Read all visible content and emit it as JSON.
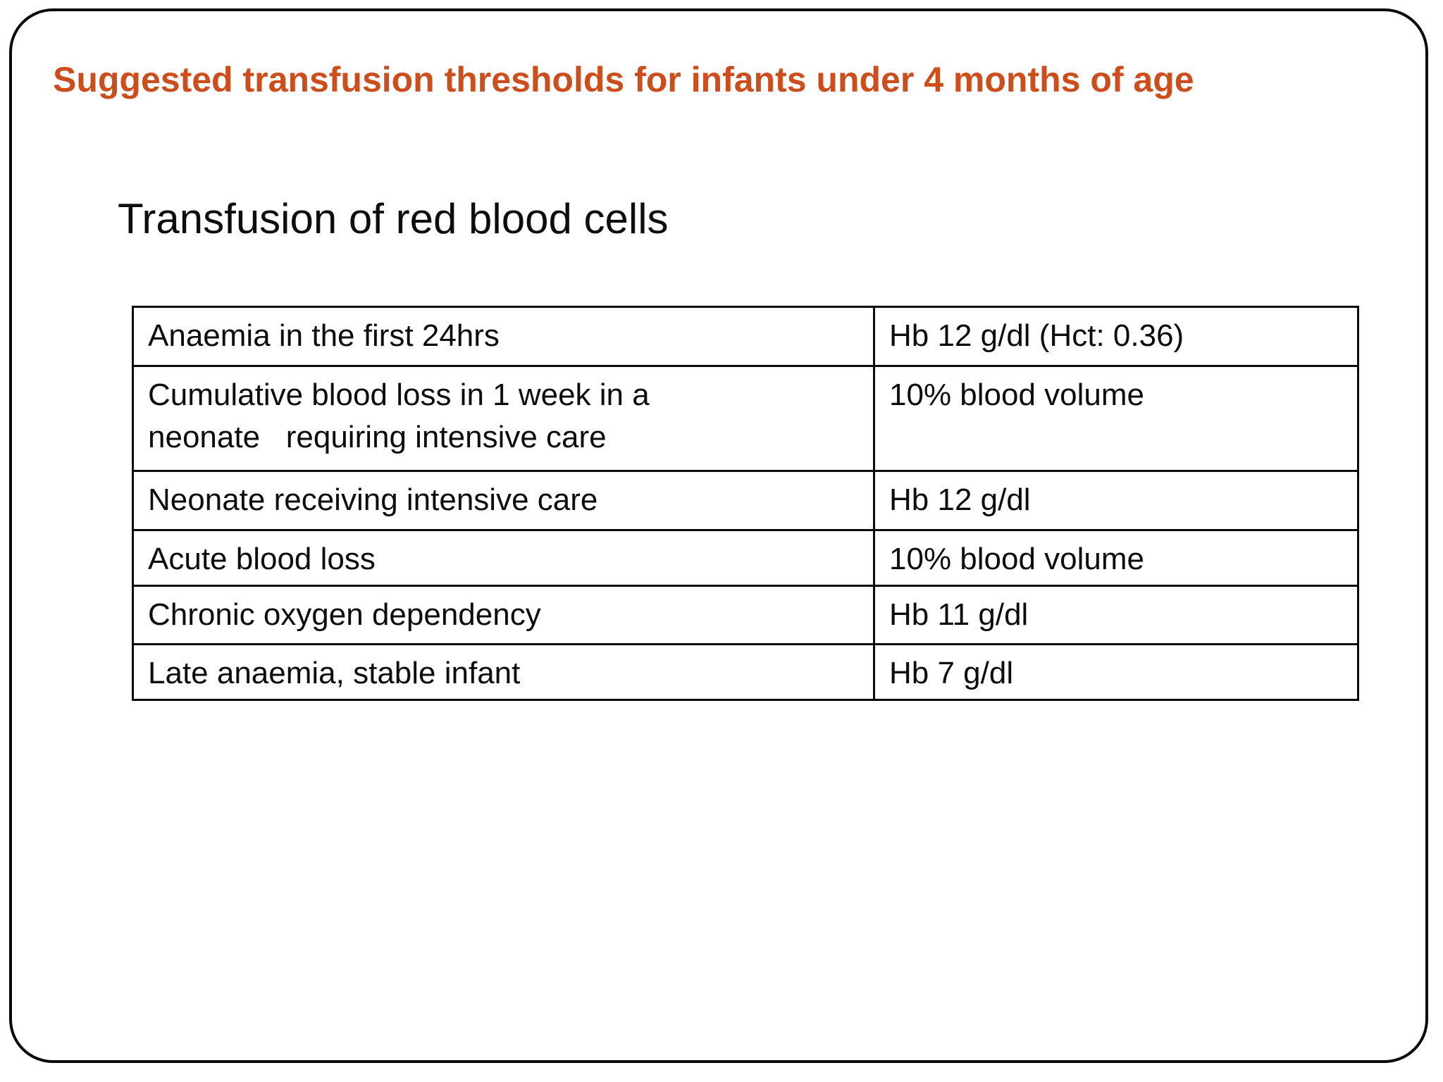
{
  "slide": {
    "title": "Suggested transfusion thresholds for infants under 4 months of age",
    "subtitle": "Transfusion of red blood cells",
    "title_color": "#cc4e1c",
    "text_color": "#0d0d0d",
    "border_color": "#0a0a0a"
  },
  "table": {
    "rows": [
      {
        "condition": "Anaemia in the first 24hrs",
        "threshold": "Hb 12 g/dl (Hct: 0.36)"
      },
      {
        "condition": "Cumulative blood loss in 1 week in a\nneonate   requiring intensive care",
        "threshold": "10% blood volume"
      },
      {
        "condition": "Neonate receiving intensive care",
        "threshold": "Hb 12 g/dl"
      },
      {
        "condition": "Acute blood loss",
        "threshold": "10% blood volume"
      },
      {
        "condition": "Chronic oxygen dependency",
        "threshold": "Hb 11 g/dl"
      },
      {
        "condition": "Late anaemia, stable infant",
        "threshold": "Hb 7 g/dl"
      }
    ]
  }
}
